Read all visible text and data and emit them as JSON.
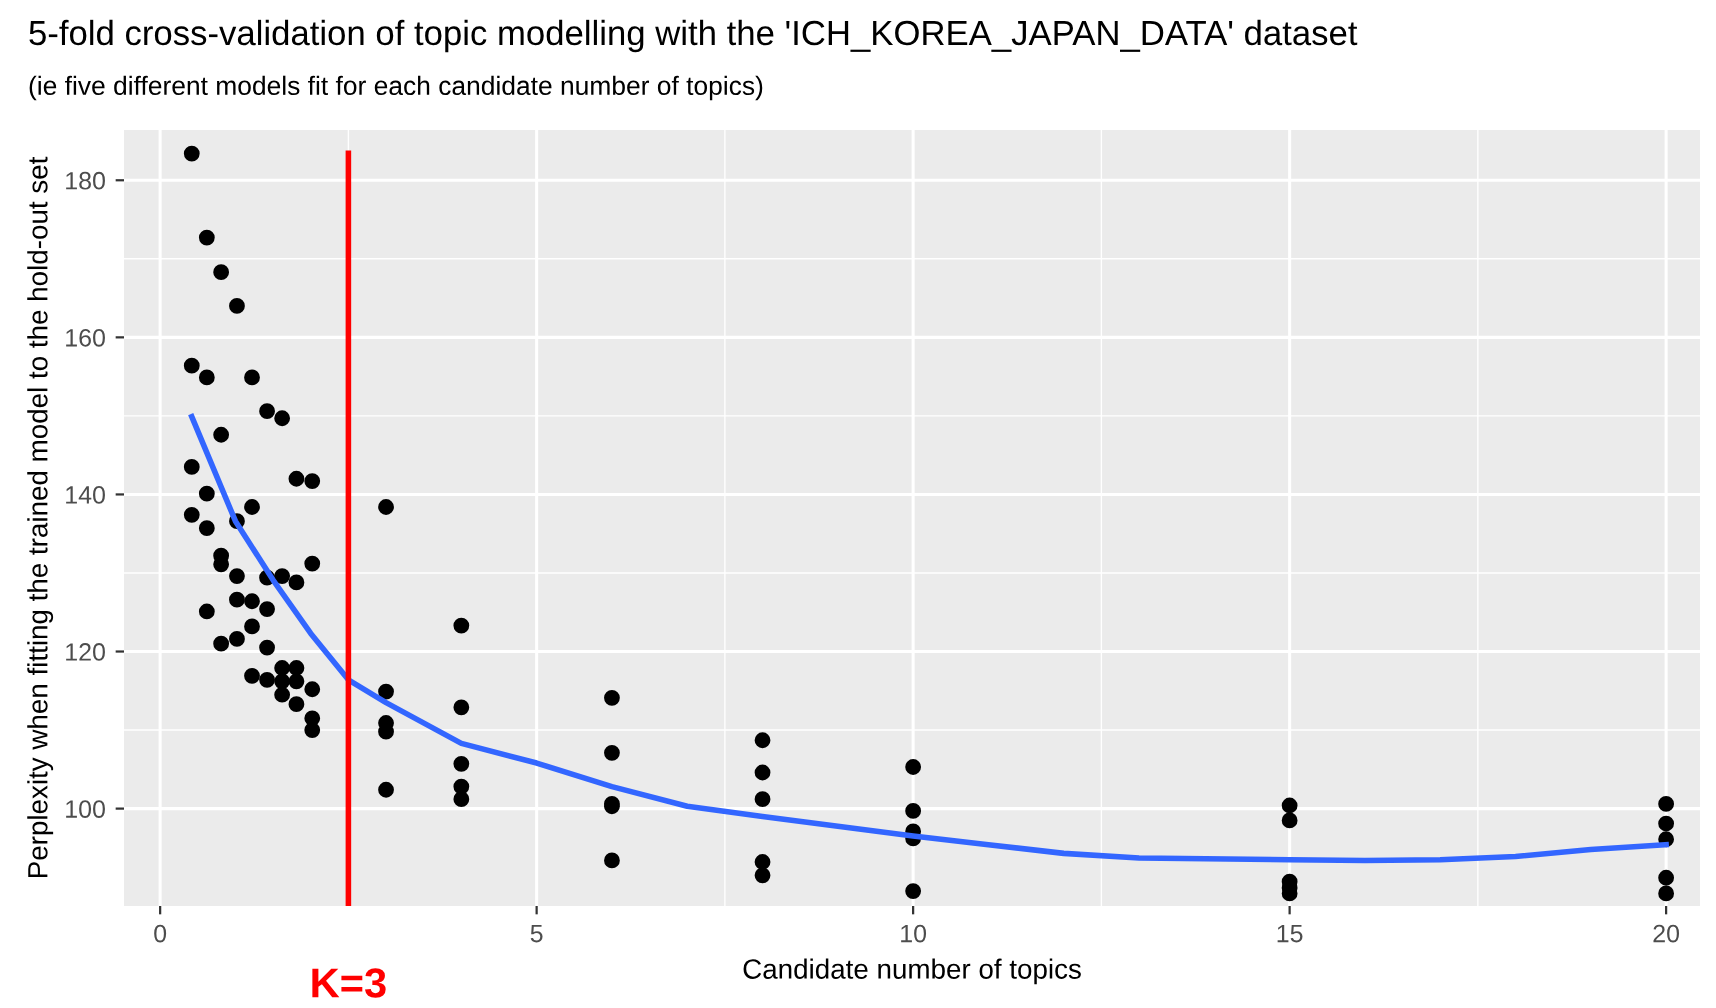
{
  "chart_data": {
    "type": "scatter",
    "title": "5-fold cross-validation of topic modelling with the 'ICH_KOREA_JAPAN_DATA' dataset",
    "subtitle": "(ie five different models fit for each candidate number of topics)",
    "xlabel": "Candidate number of topics",
    "ylabel": "Perplexity when fitting the trained model to the hold-out set",
    "xlim": [
      -0.48,
      20.45
    ],
    "ylim": [
      87.6,
      186.4
    ],
    "xticks": [
      0,
      5,
      10,
      15,
      20
    ],
    "yticks": [
      100,
      120,
      140,
      160,
      180
    ],
    "grid": true,
    "marker": "circle",
    "series": [
      {
        "color": "#000000",
        "x": [
          0.42,
          0.62,
          0.81,
          1.02,
          0.42,
          0.62,
          1.22,
          1.42,
          1.62,
          0.81,
          0.42,
          1.81,
          2.02,
          1.22,
          0.42,
          0.62,
          1.02,
          0.62,
          0.81,
          0.81,
          2.02,
          1.02,
          1.42,
          1.62,
          1.81,
          0.62,
          1.02,
          1.22,
          1.42,
          1.22,
          0.81,
          1.02,
          1.42,
          1.22,
          1.42,
          1.62,
          1.81,
          1.62,
          1.81,
          1.62,
          2.02,
          1.81,
          2.02,
          2.02,
          3,
          3,
          3,
          3,
          3,
          4,
          4,
          4,
          4,
          4,
          6,
          6,
          6,
          6,
          6,
          8,
          8,
          8,
          8,
          8,
          10,
          10,
          10,
          10,
          10,
          15,
          15,
          15,
          15,
          15,
          20,
          20,
          20,
          20,
          20
        ],
        "values": [
          183.4,
          172.7,
          168.3,
          164.0,
          156.4,
          154.9,
          154.9,
          150.6,
          149.7,
          147.6,
          143.5,
          142.0,
          141.7,
          138.4,
          137.4,
          140.1,
          136.6,
          135.7,
          132.2,
          131.1,
          131.2,
          129.6,
          129.4,
          129.6,
          128.8,
          125.1,
          126.6,
          126.4,
          125.4,
          123.2,
          121.0,
          121.6,
          120.5,
          116.9,
          116.4,
          117.9,
          117.9,
          116.2,
          116.2,
          114.5,
          115.2,
          113.3,
          111.5,
          110.0,
          138.4,
          114.9,
          110.9,
          109.8,
          102.4,
          123.3,
          112.9,
          105.7,
          102.8,
          101.2,
          114.1,
          107.1,
          100.6,
          100.3,
          93.4,
          108.7,
          104.6,
          101.2,
          93.2,
          91.5,
          105.3,
          99.7,
          97.1,
          96.2,
          89.5,
          100.4,
          98.5,
          90.7,
          89.9,
          89.2,
          100.6,
          98.1,
          96.1,
          91.2,
          89.2
        ]
      },
      {
        "type": "line",
        "color": "#3366ff",
        "marker": "none",
        "line_style": "solid",
        "x": [
          0.42,
          1.0,
          1.5,
          2.0,
          2.5,
          3,
          4,
          5,
          6,
          7,
          8,
          10,
          11,
          12,
          13,
          15,
          16,
          17,
          18,
          19,
          20
        ],
        "values": [
          149.9,
          136.6,
          129.1,
          122.3,
          116.4,
          113.5,
          108.3,
          105.8,
          102.8,
          100.3,
          99.0,
          96.5,
          95.4,
          94.3,
          93.7,
          93.5,
          93.4,
          93.5,
          93.9,
          94.8,
          95.4
        ]
      }
    ],
    "ref_lines": [
      {
        "axis": "x",
        "value": 2.5,
        "label": "K=3",
        "color": "#ff0000",
        "line_style": "solid"
      }
    ]
  }
}
